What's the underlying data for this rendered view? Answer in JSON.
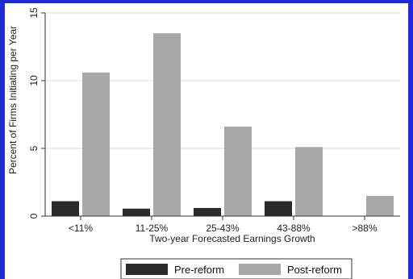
{
  "chart_data": {
    "type": "bar",
    "title": "",
    "xlabel": "Two-year Forecasted Earnings Growth",
    "ylabel": "Percent of Firms Initiating per Year",
    "categories": [
      "<11%",
      "11-25%",
      "25-43%",
      "43-88%",
      ">88%"
    ],
    "series": [
      {
        "name": "Pre-reform",
        "values": [
          1.1,
          0.55,
          0.6,
          1.1,
          0
        ],
        "color": "#2b2b2b"
      },
      {
        "name": "Post-reform",
        "values": [
          10.6,
          13.5,
          6.6,
          5.1,
          1.5
        ],
        "color": "#a8a8a8"
      }
    ],
    "ylim": [
      0,
      15
    ],
    "yticks": [
      "0",
      "5",
      "10",
      "15"
    ],
    "ytick_values": [
      0,
      5,
      10,
      15
    ],
    "grid": true,
    "legend_position": "bottom"
  }
}
